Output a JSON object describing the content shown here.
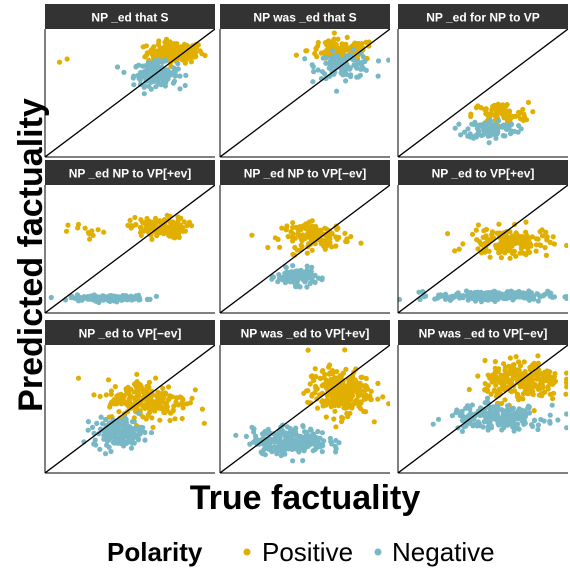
{
  "chart_data": {
    "type": "scatter",
    "facet_layout": "3x3 grid",
    "xlabel": "True factuality",
    "ylabel": "Predicted factuality",
    "legend": {
      "title": "Polarity",
      "position": "bottom",
      "entries": [
        {
          "label": "Positive",
          "color": "#E1AF00"
        },
        {
          "label": "Negative",
          "color": "#78B7C5"
        }
      ]
    },
    "reference_line": "y = x",
    "xlim": [
      -3,
      3
    ],
    "ylim": [
      -3,
      3
    ],
    "panels": [
      {
        "title": "NP _ed that S",
        "clusters": [
          {
            "series": "Positive",
            "center": [
              1.6,
              1.9
            ],
            "spread": [
              0.9,
              0.45
            ],
            "n": 170
          },
          {
            "series": "Positive",
            "center": [
              -2.5,
              1.6
            ],
            "spread": [
              0.3,
              0.3
            ],
            "n": 2
          },
          {
            "series": "Negative",
            "center": [
              0.9,
              0.9
            ],
            "spread": [
              0.7,
              0.5
            ],
            "n": 160
          }
        ]
      },
      {
        "title": "NP was _ed that S",
        "clusters": [
          {
            "series": "Positive",
            "center": [
              1.3,
              2.0
            ],
            "spread": [
              1.1,
              0.45
            ],
            "n": 110
          },
          {
            "series": "Negative",
            "center": [
              1.4,
              1.3
            ],
            "spread": [
              0.9,
              0.55
            ],
            "n": 110
          }
        ]
      },
      {
        "title": "NP _ed for NP to VP",
        "clusters": [
          {
            "series": "Positive",
            "center": [
              0.6,
              -1.0
            ],
            "spread": [
              0.9,
              0.5
            ],
            "n": 80
          },
          {
            "series": "Negative",
            "center": [
              0.3,
              -1.7
            ],
            "spread": [
              0.8,
              0.4
            ],
            "n": 100
          }
        ]
      },
      {
        "title": "NP _ed NP to VP[+ev]",
        "clusters": [
          {
            "series": "Positive",
            "center": [
              1.0,
              1.0
            ],
            "spread": [
              0.9,
              0.45
            ],
            "n": 130
          },
          {
            "series": "Positive",
            "center": [
              -1.5,
              0.8
            ],
            "spread": [
              0.6,
              0.4
            ],
            "n": 12
          },
          {
            "series": "Negative",
            "center": [
              -0.8,
              -2.3
            ],
            "spread": [
              1.2,
              0.12
            ],
            "n": 150
          }
        ]
      },
      {
        "title": "NP _ed NP to VP[−ev]",
        "clusters": [
          {
            "series": "Positive",
            "center": [
              0.4,
              0.6
            ],
            "spread": [
              1.1,
              0.55
            ],
            "n": 130
          },
          {
            "series": "Negative",
            "center": [
              -0.3,
              -1.3
            ],
            "spread": [
              0.6,
              0.35
            ],
            "n": 130
          }
        ]
      },
      {
        "title": "NP _ed to VP[+ev]",
        "clusters": [
          {
            "series": "Positive",
            "center": [
              0.9,
              0.3
            ],
            "spread": [
              1.3,
              0.6
            ],
            "n": 160
          },
          {
            "series": "Negative",
            "center": [
              0.3,
              -2.2
            ],
            "spread": [
              1.8,
              0.2
            ],
            "n": 220
          }
        ]
      },
      {
        "title": "NP _ed to VP[−ev]",
        "clusters": [
          {
            "series": "Positive",
            "center": [
              0.6,
              0.4
            ],
            "spread": [
              1.3,
              0.9
            ],
            "n": 220
          },
          {
            "series": "Negative",
            "center": [
              -0.4,
              -1.1
            ],
            "spread": [
              0.8,
              0.6
            ],
            "n": 170
          }
        ]
      },
      {
        "title": "NP was _ed to VP[+ev]",
        "clusters": [
          {
            "series": "Positive",
            "center": [
              1.2,
              0.8
            ],
            "spread": [
              1.0,
              1.0
            ],
            "n": 260
          },
          {
            "series": "Negative",
            "center": [
              -0.5,
              -1.5
            ],
            "spread": [
              1.2,
              0.55
            ],
            "n": 260
          }
        ]
      },
      {
        "title": "NP was _ed to VP[−ev]",
        "clusters": [
          {
            "series": "Positive",
            "center": [
              1.4,
              1.3
            ],
            "spread": [
              1.2,
              0.8
            ],
            "n": 260
          },
          {
            "series": "Negative",
            "center": [
              0.5,
              -0.4
            ],
            "spread": [
              1.5,
              0.5
            ],
            "n": 230
          }
        ]
      }
    ]
  }
}
